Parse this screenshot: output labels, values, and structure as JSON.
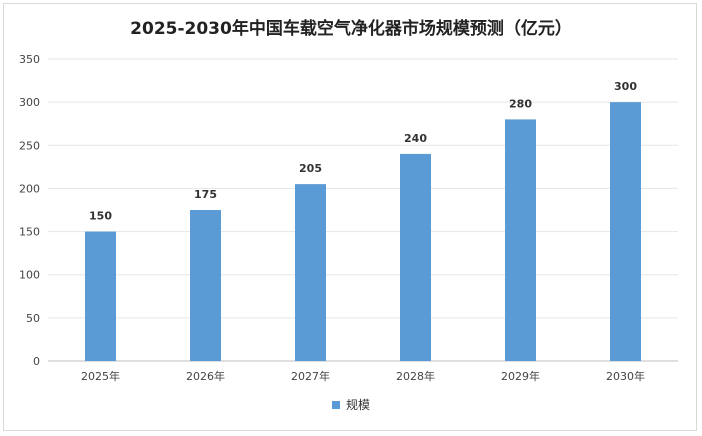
{
  "chart_data": {
    "type": "bar",
    "title": "2025-2030年中国车载空气净化器市场规模预测（亿元）",
    "categories": [
      "2025年",
      "2026年",
      "2027年",
      "2028年",
      "2029年",
      "2030年"
    ],
    "series": [
      {
        "name": "规模",
        "values": [
          150,
          175,
          205,
          240,
          280,
          300
        ]
      }
    ],
    "xlabel": "",
    "ylabel": "",
    "ylim": [
      0,
      350
    ],
    "yticks": [
      0,
      50,
      100,
      150,
      200,
      250,
      300,
      350
    ],
    "grid": true,
    "legend": "bottom",
    "bar_color": "#5b9bd5"
  }
}
